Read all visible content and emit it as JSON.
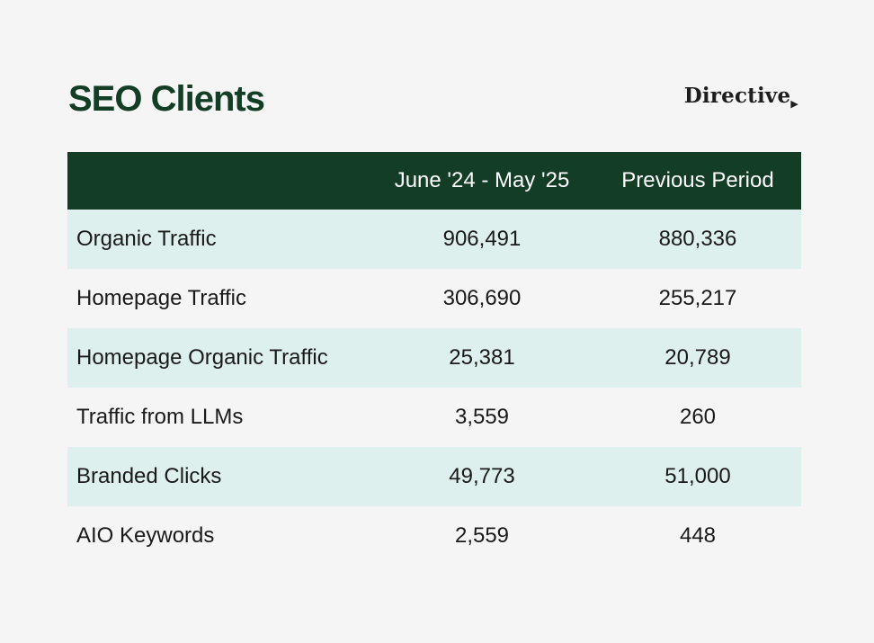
{
  "header": {
    "title": "SEO Clients",
    "logo_text": "Directive"
  },
  "colors": {
    "title": "#133d25",
    "header_row": "#133d25",
    "shaded_row": "#ddf0ee",
    "background": "#f5f5f5"
  },
  "chart_data": {
    "type": "table",
    "title": "SEO Clients",
    "columns": [
      "",
      "June '24 - May '25",
      "Previous Period"
    ],
    "rows": [
      {
        "label": "Organic Traffic",
        "current": "906,491",
        "previous": "880,336"
      },
      {
        "label": "Homepage Traffic",
        "current": "306,690",
        "previous": "255,217"
      },
      {
        "label": "Homepage Organic Traffic",
        "current": "25,381",
        "previous": "20,789"
      },
      {
        "label": "Traffic from LLMs",
        "current": "3,559",
        "previous": "260"
      },
      {
        "label": "Branded Clicks",
        "current": "49,773",
        "previous": "51,000"
      },
      {
        "label": "AIO Keywords",
        "current": "2,559",
        "previous": "448"
      }
    ]
  }
}
